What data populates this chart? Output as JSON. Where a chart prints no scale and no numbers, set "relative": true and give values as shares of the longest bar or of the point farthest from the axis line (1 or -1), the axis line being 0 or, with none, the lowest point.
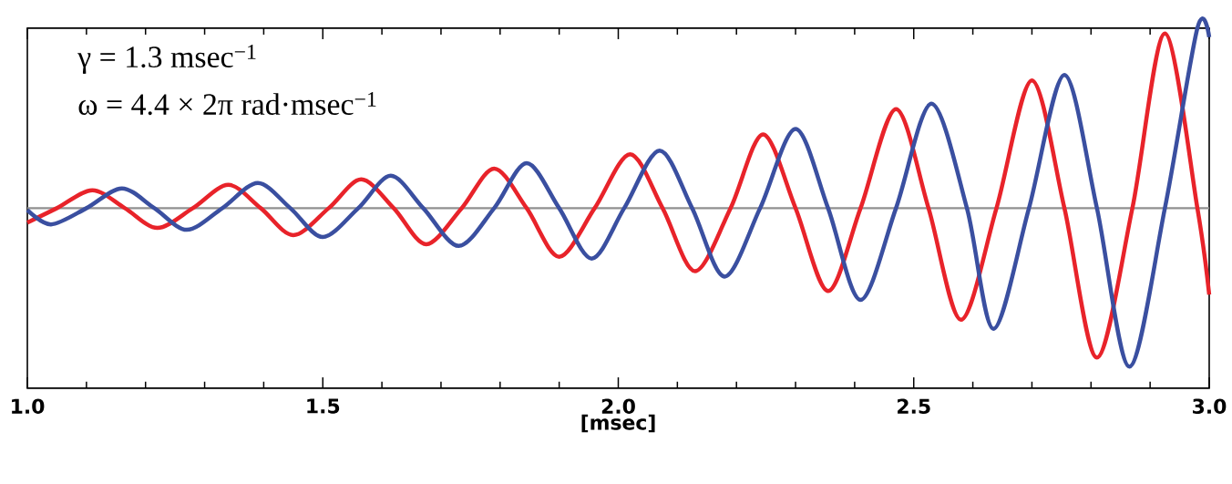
{
  "chart_data": {
    "type": "line",
    "relative": true,
    "xlabel": "[msec]",
    "annotations": [
      "γ = 1.3 msec$^{−1}$",
      "ω = 4.4 × 2π rad·msec$^{−1}$"
    ],
    "xlim": [
      1.0,
      3.0
    ],
    "xticks": [
      {
        "value": 1.0,
        "label": "1.0"
      },
      {
        "value": 1.5,
        "label": "1.5"
      },
      {
        "value": 2.0,
        "label": "2.0"
      },
      {
        "value": 2.5,
        "label": "2.5"
      },
      {
        "value": 3.0,
        "label": "3.0"
      }
    ],
    "ref_lines": [
      {
        "axis": "y",
        "value": 0,
        "color": "#909090"
      }
    ],
    "series": [
      {
        "color": "#e8232a",
        "x": [
          1.0,
          1.05,
          1.11,
          1.165,
          1.22,
          1.28,
          1.34,
          1.395,
          1.45,
          1.51,
          1.565,
          1.62,
          1.675,
          1.735,
          1.79,
          1.845,
          1.9,
          1.96,
          2.02,
          2.075,
          2.13,
          2.19,
          2.245,
          2.3,
          2.355,
          2.41,
          2.47,
          2.525,
          2.58,
          2.64,
          2.7,
          2.755,
          2.81,
          2.87,
          2.925,
          2.98,
          3.0
        ],
        "values": [
          -0.08,
          0,
          0.1,
          0,
          -0.11,
          0,
          0.13,
          0,
          -0.15,
          0,
          0.16,
          0,
          -0.2,
          0,
          0.22,
          0,
          -0.27,
          0,
          0.3,
          0,
          -0.35,
          0,
          0.41,
          0,
          -0.46,
          0,
          0.55,
          0,
          -0.62,
          0,
          0.71,
          0,
          -0.83,
          0,
          0.97,
          0,
          -0.48
        ]
      },
      {
        "color": "#3a4fa0",
        "x": [
          1.0,
          1.04,
          1.1,
          1.16,
          1.215,
          1.27,
          1.33,
          1.39,
          1.445,
          1.5,
          1.56,
          1.615,
          1.67,
          1.73,
          1.79,
          1.845,
          1.9,
          1.955,
          2.01,
          2.07,
          2.125,
          2.18,
          2.24,
          2.3,
          2.355,
          2.41,
          2.47,
          2.53,
          2.59,
          2.635,
          2.695,
          2.755,
          2.81,
          2.865,
          2.925,
          2.98,
          3.0
        ],
        "values": [
          -0.01,
          -0.09,
          0,
          0.11,
          0,
          -0.12,
          0,
          0.14,
          0,
          -0.16,
          0,
          0.18,
          0,
          -0.21,
          0,
          0.25,
          0,
          -0.28,
          0,
          0.32,
          0,
          -0.38,
          0,
          0.44,
          0,
          -0.51,
          0,
          0.58,
          0,
          -0.67,
          0,
          0.74,
          0,
          -0.88,
          0,
          1.0,
          0.95
        ]
      }
    ]
  }
}
